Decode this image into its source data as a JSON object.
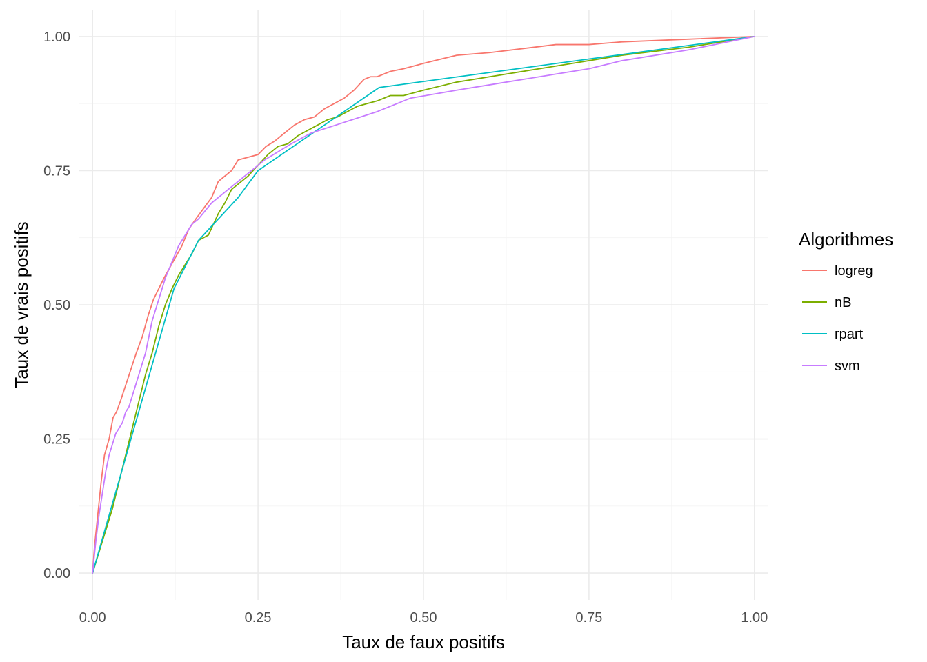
{
  "chart_data": {
    "type": "line",
    "title": "",
    "xlabel": "Taux de faux positifs",
    "ylabel": "Taux de vrais positifs",
    "xlim": [
      -0.02,
      1.02
    ],
    "ylim": [
      -0.05,
      1.05
    ],
    "xticks": [
      0,
      0.25,
      0.5,
      0.75,
      1
    ],
    "yticks": [
      0,
      0.25,
      0.5,
      0.75,
      1
    ],
    "xtick_labels": [
      "0.00",
      "0.25",
      "0.50",
      "0.75",
      "1.00"
    ],
    "ytick_labels": [
      "0.00",
      "0.25",
      "0.50",
      "0.75",
      "1.00"
    ],
    "grid": true,
    "legend": {
      "title": "Algorithmes",
      "position": "right"
    },
    "series": [
      {
        "name": "logreg",
        "color": "#F8766D",
        "x": [
          0,
          0.003,
          0.008,
          0.013,
          0.018,
          0.025,
          0.031,
          0.036,
          0.042,
          0.05,
          0.058,
          0.066,
          0.075,
          0.084,
          0.092,
          0.1,
          0.108,
          0.117,
          0.126,
          0.135,
          0.145,
          0.156,
          0.168,
          0.18,
          0.19,
          0.2,
          0.21,
          0.22,
          0.235,
          0.25,
          0.262,
          0.275,
          0.29,
          0.305,
          0.32,
          0.335,
          0.35,
          0.365,
          0.38,
          0.395,
          0.41,
          0.42,
          0.43,
          0.45,
          0.47,
          0.5,
          0.55,
          0.6,
          0.7,
          0.75,
          0.8,
          0.9,
          1
        ],
        "y": [
          0,
          0.05,
          0.11,
          0.17,
          0.22,
          0.25,
          0.29,
          0.3,
          0.32,
          0.35,
          0.38,
          0.41,
          0.44,
          0.48,
          0.51,
          0.53,
          0.55,
          0.57,
          0.59,
          0.61,
          0.64,
          0.66,
          0.68,
          0.7,
          0.73,
          0.74,
          0.75,
          0.77,
          0.775,
          0.78,
          0.795,
          0.805,
          0.82,
          0.835,
          0.845,
          0.85,
          0.865,
          0.875,
          0.885,
          0.9,
          0.92,
          0.925,
          0.925,
          0.935,
          0.94,
          0.95,
          0.965,
          0.97,
          0.985,
          0.985,
          0.99,
          0.995,
          1
        ]
      },
      {
        "name": "nB",
        "color": "#7CAE00",
        "x": [
          0,
          0.01,
          0.02,
          0.03,
          0.04,
          0.05,
          0.06,
          0.07,
          0.08,
          0.09,
          0.1,
          0.11,
          0.12,
          0.13,
          0.14,
          0.15,
          0.16,
          0.175,
          0.19,
          0.2,
          0.21,
          0.22,
          0.235,
          0.25,
          0.265,
          0.28,
          0.295,
          0.31,
          0.325,
          0.34,
          0.355,
          0.37,
          0.385,
          0.4,
          0.415,
          0.43,
          0.45,
          0.47,
          0.5,
          0.55,
          0.6,
          0.7,
          0.75,
          0.8,
          0.9,
          1
        ],
        "y": [
          0,
          0.04,
          0.08,
          0.12,
          0.17,
          0.22,
          0.27,
          0.32,
          0.37,
          0.41,
          0.46,
          0.5,
          0.53,
          0.555,
          0.575,
          0.595,
          0.62,
          0.63,
          0.67,
          0.69,
          0.715,
          0.725,
          0.74,
          0.76,
          0.78,
          0.795,
          0.8,
          0.815,
          0.825,
          0.835,
          0.845,
          0.85,
          0.86,
          0.87,
          0.875,
          0.88,
          0.89,
          0.89,
          0.9,
          0.915,
          0.925,
          0.945,
          0.955,
          0.965,
          0.98,
          1
        ]
      },
      {
        "name": "rpart",
        "color": "#00BFC4",
        "x": [
          0,
          0.123,
          0.16,
          0.22,
          0.25,
          0.433,
          1
        ],
        "y": [
          0,
          0.53,
          0.62,
          0.7,
          0.75,
          0.905,
          1
        ]
      },
      {
        "name": "svm",
        "color": "#C77CFF",
        "x": [
          0,
          0.005,
          0.01,
          0.015,
          0.02,
          0.025,
          0.03,
          0.035,
          0.04,
          0.045,
          0.05,
          0.055,
          0.06,
          0.065,
          0.07,
          0.075,
          0.08,
          0.085,
          0.09,
          0.095,
          0.1,
          0.11,
          0.12,
          0.13,
          0.14,
          0.15,
          0.16,
          0.18,
          0.2,
          0.23,
          0.26,
          0.3,
          0.33,
          0.38,
          0.43,
          0.48,
          0.55,
          0.6,
          0.7,
          0.75,
          0.8,
          0.9,
          1
        ],
        "y": [
          0,
          0.06,
          0.11,
          0.15,
          0.19,
          0.22,
          0.24,
          0.26,
          0.27,
          0.28,
          0.3,
          0.31,
          0.33,
          0.35,
          0.37,
          0.39,
          0.41,
          0.44,
          0.47,
          0.49,
          0.51,
          0.55,
          0.58,
          0.61,
          0.63,
          0.65,
          0.66,
          0.69,
          0.71,
          0.74,
          0.77,
          0.8,
          0.82,
          0.84,
          0.86,
          0.885,
          0.9,
          0.91,
          0.93,
          0.94,
          0.955,
          0.975,
          1
        ]
      }
    ]
  }
}
